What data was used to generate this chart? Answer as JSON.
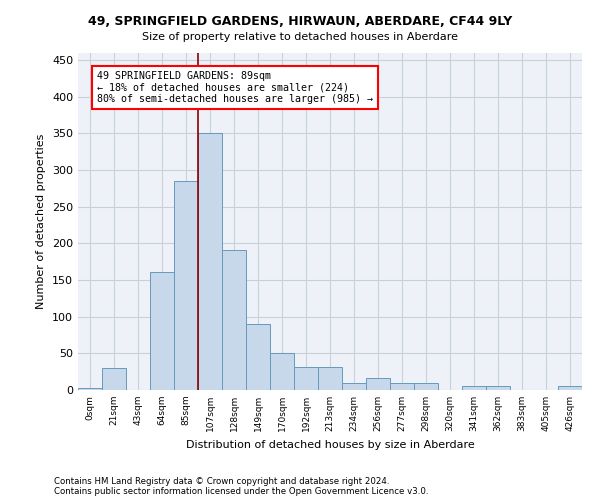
{
  "title": "49, SPRINGFIELD GARDENS, HIRWAUN, ABERDARE, CF44 9LY",
  "subtitle": "Size of property relative to detached houses in Aberdare",
  "xlabel": "Distribution of detached houses by size in Aberdare",
  "ylabel": "Number of detached properties",
  "bar_color": "#c8d8eb",
  "bar_edge_color": "#6699bb",
  "categories": [
    "0sqm",
    "21sqm",
    "43sqm",
    "64sqm",
    "85sqm",
    "107sqm",
    "128sqm",
    "149sqm",
    "170sqm",
    "192sqm",
    "213sqm",
    "234sqm",
    "256sqm",
    "277sqm",
    "298sqm",
    "320sqm",
    "341sqm",
    "362sqm",
    "383sqm",
    "405sqm",
    "426sqm"
  ],
  "values": [
    3,
    30,
    0,
    161,
    285,
    350,
    191,
    90,
    50,
    31,
    31,
    10,
    17,
    9,
    10,
    0,
    5,
    5,
    0,
    0,
    5
  ],
  "ylim": [
    0,
    460
  ],
  "yticks": [
    0,
    50,
    100,
    150,
    200,
    250,
    300,
    350,
    400,
    450
  ],
  "vline_x_index": 4.5,
  "annotation_text": "49 SPRINGFIELD GARDENS: 89sqm\n← 18% of detached houses are smaller (224)\n80% of semi-detached houses are larger (985) →",
  "annotation_box_color": "white",
  "annotation_box_edge_color": "red",
  "vline_color": "#8b0000",
  "grid_color": "#c8d0d8",
  "footnote1": "Contains HM Land Registry data © Crown copyright and database right 2024.",
  "footnote2": "Contains public sector information licensed under the Open Government Licence v3.0.",
  "bg_color": "#eef2f8"
}
